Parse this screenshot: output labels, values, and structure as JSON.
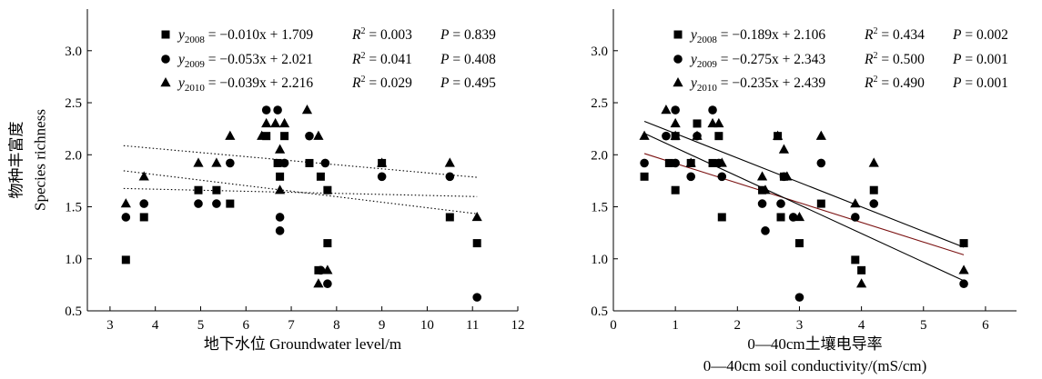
{
  "chart_data": [
    {
      "type": "scatter",
      "ylabel_cn": "物种丰富度",
      "ylabel_en": "Species richness",
      "xlabel_lines": [
        "地下水位 Groundwater level/m"
      ],
      "xlim": [
        2.5,
        12
      ],
      "ylim": [
        0.5,
        3.4
      ],
      "xticks": [
        3,
        4,
        5,
        6,
        7,
        8,
        9,
        10,
        11,
        12
      ],
      "yticks": [
        0.5,
        1.0,
        1.5,
        2.0,
        2.5,
        3.0
      ],
      "ytick_labels": [
        "0.5",
        "1.0",
        "1.5",
        "2.0",
        "2.5",
        "3.0"
      ],
      "line_style": "dotted",
      "series": [
        {
          "name": "2008",
          "marker": "square",
          "equation": {
            "y": "y",
            "sub": "2008",
            "rhs": "= −0.010x + 1.709",
            "r2": "0.003",
            "p": "0.839"
          },
          "fit": {
            "slope": -0.01,
            "intercept": 1.709,
            "x_range": [
              3.3,
              11.1
            ]
          },
          "points": [
            [
              3.35,
              0.99
            ],
            [
              3.75,
              1.4
            ],
            [
              4.95,
              1.66
            ],
            [
              5.35,
              1.66
            ],
            [
              5.65,
              1.53
            ],
            [
              6.45,
              2.18
            ],
            [
              6.7,
              1.92
            ],
            [
              6.75,
              1.79
            ],
            [
              6.85,
              2.18
            ],
            [
              7.4,
              1.92
            ],
            [
              7.6,
              0.89
            ],
            [
              7.65,
              1.79
            ],
            [
              7.8,
              1.66
            ],
            [
              7.8,
              1.15
            ],
            [
              9.0,
              1.92
            ],
            [
              10.5,
              1.4
            ],
            [
              11.1,
              1.15
            ]
          ]
        },
        {
          "name": "2009",
          "marker": "circle",
          "equation": {
            "y": "y",
            "sub": "2009",
            "rhs": "= −0.053x + 2.021",
            "r2": "0.041",
            "p": "0.408"
          },
          "fit": {
            "slope": -0.053,
            "intercept": 2.021,
            "x_range": [
              3.3,
              11.1
            ]
          },
          "points": [
            [
              3.35,
              1.4
            ],
            [
              3.75,
              1.53
            ],
            [
              4.95,
              1.53
            ],
            [
              5.35,
              1.53
            ],
            [
              5.65,
              1.92
            ],
            [
              6.45,
              2.43
            ],
            [
              6.7,
              2.43
            ],
            [
              6.75,
              1.4
            ],
            [
              6.75,
              1.27
            ],
            [
              6.85,
              1.92
            ],
            [
              7.4,
              2.18
            ],
            [
              7.65,
              0.89
            ],
            [
              7.75,
              1.92
            ],
            [
              7.8,
              0.76
            ],
            [
              9.0,
              1.79
            ],
            [
              10.5,
              1.79
            ],
            [
              11.1,
              0.63
            ]
          ]
        },
        {
          "name": "2010",
          "marker": "triangle",
          "equation": {
            "y": "y",
            "sub": "2010",
            "rhs": "= −0.039x + 2.216",
            "r2": "0.029",
            "p": "0.495"
          },
          "fit": {
            "slope": -0.039,
            "intercept": 2.216,
            "x_range": [
              3.3,
              11.1
            ]
          },
          "points": [
            [
              3.35,
              1.53
            ],
            [
              3.75,
              1.79
            ],
            [
              4.95,
              1.92
            ],
            [
              5.35,
              1.92
            ],
            [
              5.65,
              2.18
            ],
            [
              6.35,
              2.18
            ],
            [
              6.45,
              2.3
            ],
            [
              6.65,
              2.3
            ],
            [
              6.75,
              2.05
            ],
            [
              6.75,
              1.66
            ],
            [
              6.85,
              2.3
            ],
            [
              7.35,
              2.43
            ],
            [
              7.6,
              2.18
            ],
            [
              7.6,
              0.76
            ],
            [
              7.8,
              0.89
            ],
            [
              9.0,
              1.92
            ],
            [
              10.5,
              1.92
            ],
            [
              11.1,
              1.4
            ]
          ]
        }
      ]
    },
    {
      "type": "scatter",
      "ylabel_cn": "",
      "ylabel_en": "",
      "xlabel_lines": [
        "0—40cm土壤电导率",
        "0—40cm soil conductivity/(mS/cm)"
      ],
      "xlim": [
        0,
        6.5
      ],
      "ylim": [
        0.5,
        3.4
      ],
      "xticks": [
        0,
        1,
        2,
        3,
        4,
        5,
        6
      ],
      "yticks": [
        0.5,
        1.0,
        1.5,
        2.0,
        2.5,
        3.0
      ],
      "ytick_labels": [
        "0.5",
        "1.0",
        "1.5",
        "2.0",
        "2.5",
        "3.0"
      ],
      "line_style": "solid",
      "series": [
        {
          "name": "2008",
          "marker": "square",
          "equation": {
            "y": "y",
            "sub": "2008",
            "rhs": "= −0.189x + 2.106",
            "r2": "0.434",
            "p": "0.002"
          },
          "fit": {
            "slope": -0.189,
            "intercept": 2.106,
            "x_range": [
              0.5,
              5.65
            ]
          },
          "points": [
            [
              0.5,
              1.79
            ],
            [
              0.9,
              1.92
            ],
            [
              1.0,
              2.18
            ],
            [
              1.0,
              1.66
            ],
            [
              1.25,
              1.92
            ],
            [
              1.35,
              2.3
            ],
            [
              1.6,
              1.92
            ],
            [
              1.7,
              2.18
            ],
            [
              1.75,
              1.4
            ],
            [
              2.4,
              1.66
            ],
            [
              2.65,
              2.18
            ],
            [
              2.7,
              1.4
            ],
            [
              2.75,
              1.79
            ],
            [
              3.0,
              1.15
            ],
            [
              3.35,
              1.53
            ],
            [
              3.9,
              0.99
            ],
            [
              4.0,
              0.89
            ],
            [
              4.2,
              1.66
            ],
            [
              5.65,
              1.15
            ]
          ]
        },
        {
          "name": "2009",
          "marker": "circle",
          "equation": {
            "y": "y",
            "sub": "2009",
            "rhs": "= −0.275x + 2.343",
            "r2": "0.500",
            "p": "0.001"
          },
          "fit": {
            "slope": -0.275,
            "intercept": 2.343,
            "x_range": [
              0.5,
              5.65
            ]
          },
          "points": [
            [
              0.5,
              1.92
            ],
            [
              0.85,
              2.18
            ],
            [
              1.0,
              2.43
            ],
            [
              1.0,
              1.92
            ],
            [
              1.25,
              1.79
            ],
            [
              1.35,
              2.18
            ],
            [
              1.6,
              2.43
            ],
            [
              1.7,
              1.92
            ],
            [
              1.75,
              1.79
            ],
            [
              2.4,
              1.53
            ],
            [
              2.45,
              1.27
            ],
            [
              2.7,
              1.53
            ],
            [
              2.75,
              1.79
            ],
            [
              2.9,
              1.4
            ],
            [
              3.0,
              0.63
            ],
            [
              3.35,
              1.92
            ],
            [
              3.9,
              1.4
            ],
            [
              4.2,
              1.53
            ],
            [
              5.65,
              0.76
            ]
          ]
        },
        {
          "name": "2010",
          "marker": "triangle",
          "equation": {
            "y": "y",
            "sub": "2010",
            "rhs": "= −0.235x + 2.439",
            "r2": "0.490",
            "p": "0.001"
          },
          "fit": {
            "slope": -0.235,
            "intercept": 2.439,
            "x_range": [
              0.5,
              5.65
            ]
          },
          "points": [
            [
              0.5,
              2.18
            ],
            [
              0.85,
              2.43
            ],
            [
              1.0,
              2.3
            ],
            [
              1.0,
              2.18
            ],
            [
              1.25,
              1.92
            ],
            [
              1.35,
              2.18
            ],
            [
              1.6,
              2.3
            ],
            [
              1.7,
              2.3
            ],
            [
              1.75,
              1.92
            ],
            [
              2.4,
              1.79
            ],
            [
              2.45,
              1.66
            ],
            [
              2.65,
              2.18
            ],
            [
              2.75,
              2.05
            ],
            [
              2.8,
              1.79
            ],
            [
              3.0,
              1.4
            ],
            [
              3.35,
              2.18
            ],
            [
              3.9,
              1.53
            ],
            [
              4.0,
              0.76
            ],
            [
              4.2,
              1.92
            ],
            [
              5.65,
              0.89
            ]
          ]
        }
      ]
    }
  ],
  "colors": {
    "ink": "#000000",
    "fit_2008_right": "#7a1010"
  }
}
